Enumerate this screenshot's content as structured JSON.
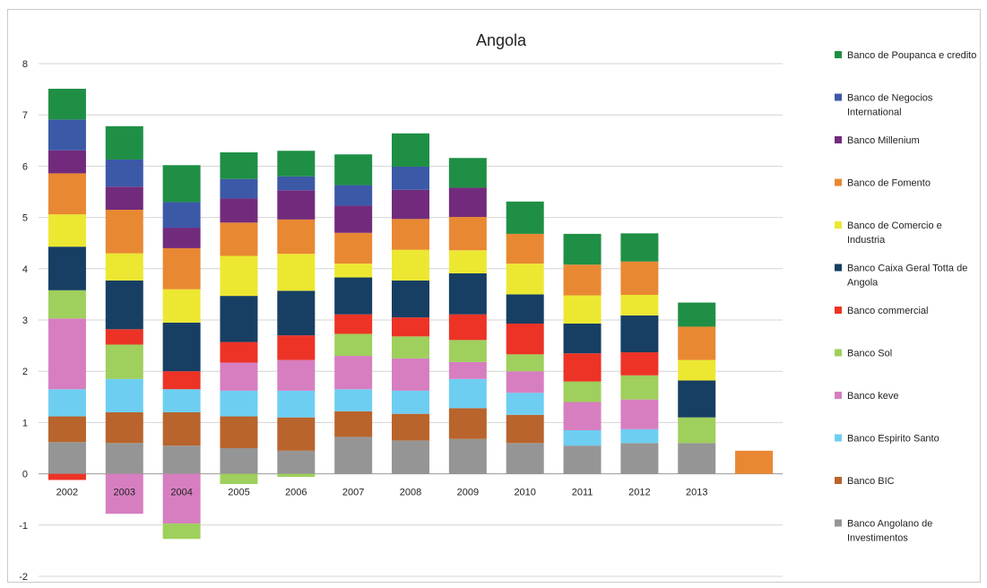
{
  "chart_data": {
    "type": "bar",
    "stacked": true,
    "title": "Angola",
    "xlabel": "",
    "ylabel": "",
    "ylim": [
      -2,
      8
    ],
    "yticks": [
      -2,
      -1,
      0,
      1,
      2,
      3,
      4,
      5,
      6,
      7,
      8
    ],
    "grid": true,
    "legend_position": "right",
    "categories": [
      "2002",
      "2003",
      "2004",
      "2005",
      "2006",
      "2007",
      "2008",
      "2009",
      "2010",
      "2011",
      "2012",
      "2013",
      ""
    ],
    "series": [
      {
        "name": "Banco Angolano de Investimentos",
        "color": "#959595",
        "values": [
          0.62,
          0.6,
          0.55,
          0.5,
          0.45,
          0.72,
          0.65,
          0.68,
          0.6,
          0.55,
          0.6,
          0.6,
          0
        ]
      },
      {
        "name": "Banco BIC",
        "color": "#b8642c",
        "values": [
          0.5,
          0.6,
          0.65,
          0.62,
          0.65,
          0.5,
          0.52,
          0.6,
          0.55,
          0,
          0,
          0,
          0
        ]
      },
      {
        "name": "Banco Espirito Santo",
        "color": "#6dcef2",
        "values": [
          0.53,
          0.65,
          0.45,
          0.5,
          0.52,
          0.43,
          0.45,
          0.57,
          0.43,
          0.3,
          0.27,
          0,
          0
        ]
      },
      {
        "name": "Banco keve",
        "color": "#d77ec0",
        "values": [
          1.38,
          -0.78,
          -0.97,
          0.55,
          0.6,
          0.65,
          0.63,
          0.33,
          0.42,
          0.55,
          0.58,
          0,
          0
        ]
      },
      {
        "name": "Banco Sol",
        "color": "#9fcf5c",
        "values": [
          0.55,
          0.67,
          -0.3,
          -0.2,
          -0.06,
          0.43,
          0.43,
          0.43,
          0.33,
          0.4,
          0.47,
          0.5,
          0
        ]
      },
      {
        "name": "Banco commercial",
        "color": "#ec3326",
        "values": [
          -0.12,
          0.3,
          0.35,
          0.4,
          0.48,
          0.38,
          0.37,
          0.5,
          0.6,
          0.55,
          0.45,
          0,
          0
        ]
      },
      {
        "name": "Banco Caixa Geral Totta de Angola",
        "color": "#173f63",
        "values": [
          0.85,
          0.95,
          0.95,
          0.9,
          0.87,
          0.72,
          0.72,
          0.8,
          0.57,
          0.58,
          0.72,
          0.72,
          0
        ]
      },
      {
        "name": "Banco de Comercio e Industria",
        "color": "#ece831",
        "values": [
          0.63,
          0.53,
          0.65,
          0.78,
          0.72,
          0.27,
          0.6,
          0.45,
          0.6,
          0.55,
          0.4,
          0.4,
          0
        ]
      },
      {
        "name": "Banco de Fomento",
        "color": "#e98832",
        "values": [
          0.8,
          0.85,
          0.8,
          0.65,
          0.67,
          0.6,
          0.6,
          0.65,
          0.58,
          0.6,
          0.65,
          0.65,
          0.45
        ]
      },
      {
        "name": "Banco Millenium",
        "color": "#722b7c",
        "values": [
          0.45,
          0.45,
          0.4,
          0.47,
          0.57,
          0.53,
          0.57,
          0.57,
          0,
          0,
          0,
          0,
          0
        ]
      },
      {
        "name": "Banco de Negocios International",
        "color": "#3c59a8",
        "values": [
          0.6,
          0.53,
          0.5,
          0.38,
          0.27,
          0.4,
          0.45,
          0,
          0,
          0,
          0,
          0,
          0
        ]
      },
      {
        "name": "Banco de Poupanca e credito",
        "color": "#1f8f45",
        "values": [
          0.6,
          0.65,
          0.72,
          0.52,
          0.5,
          0.6,
          0.65,
          0.58,
          0.63,
          0.6,
          0.55,
          0.47,
          0
        ]
      }
    ],
    "legend_order": [
      "Banco de Poupanca e credito",
      "Banco de Negocios International",
      "Banco Millenium",
      "Banco de Fomento",
      "Banco de Comercio e Industria",
      "Banco Caixa Geral Totta de Angola",
      "Banco commercial",
      "Banco Sol",
      "Banco keve",
      "Banco Espirito Santo",
      "Banco BIC",
      "Banco Angolano de Investimentos"
    ]
  }
}
